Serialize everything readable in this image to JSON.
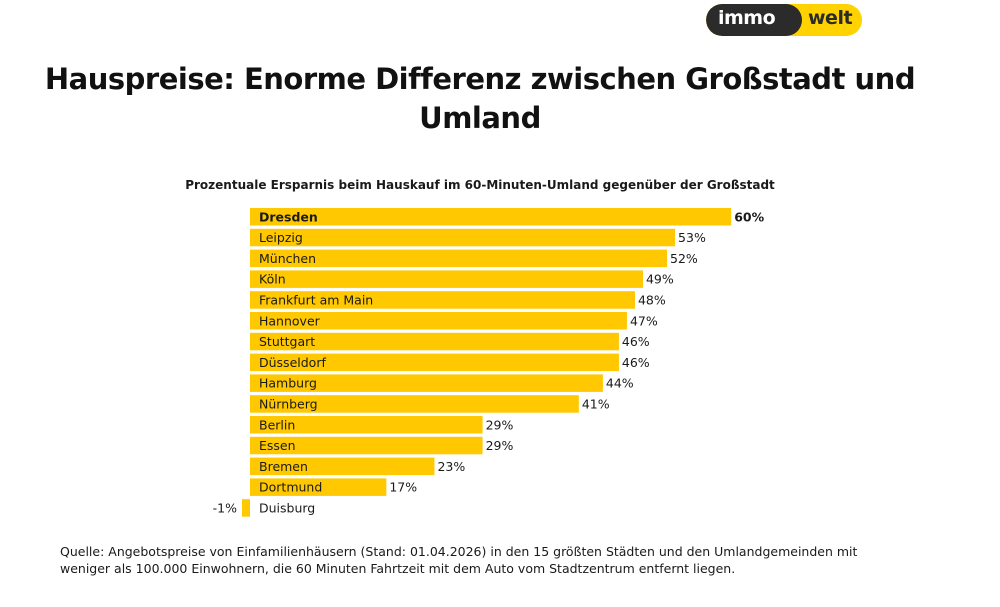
{
  "logo": {
    "part1": "immo",
    "part2": "welt",
    "colors": {
      "dark": "#2b2b2b",
      "yellow": "#FFD200"
    }
  },
  "chart_data": {
    "type": "bar",
    "orientation": "horizontal",
    "title": "Hauspreise: Enorme Differenz zwischen Großstadt und Umland",
    "subtitle": "Prozentuale Ersparnis beim Hauskauf im 60-Minuten-Umland gegenüber der Großstadt",
    "xlabel": "",
    "ylabel": "",
    "unit": "%",
    "grid": false,
    "bar_color": "#FFC800",
    "categories": [
      "Dresden",
      "Leipzig",
      "München",
      "Köln",
      "Frankfurt am Main",
      "Hannover",
      "Stuttgart",
      "Düsseldorf",
      "Hamburg",
      "Nürnberg",
      "Berlin",
      "Essen",
      "Bremen",
      "Dortmund",
      "Duisburg"
    ],
    "values": [
      60,
      53,
      52,
      49,
      48,
      47,
      46,
      46,
      44,
      41,
      29,
      29,
      23,
      17,
      -1
    ],
    "value_labels": [
      "60%",
      "53%",
      "52%",
      "49%",
      "48%",
      "47%",
      "46%",
      "46%",
      "44%",
      "41%",
      "29%",
      "29%",
      "23%",
      "17%",
      "-1%"
    ],
    "highlighted": [
      "Dresden"
    ],
    "xlim": [
      -1,
      60
    ]
  },
  "source": "Quelle: Angebotspreise von Einfamilienhäusern (Stand: 01.04.2026) in den 15 größten Städten und den Umlandgemeinden mit weniger als 100.000 Einwohnern, die 60 Minuten Fahrtzeit mit dem Auto vom Stadtzentrum entfernt liegen."
}
